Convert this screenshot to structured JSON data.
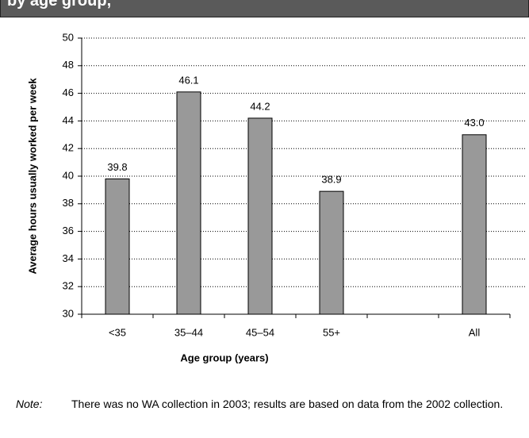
{
  "chart_data": {
    "type": "bar",
    "title": "by age group,",
    "y_label": "Average hours usually worked per week",
    "x_label": "Age group (years)",
    "categories": [
      "<35",
      "35–44",
      "45–54",
      "55+",
      null,
      "All"
    ],
    "values": [
      39.8,
      46.1,
      44.2,
      38.9,
      null,
      43.0
    ],
    "value_labels": [
      "39.8",
      "46.1",
      "44.2",
      "38.9",
      null,
      "43.0"
    ],
    "color": "#999999",
    "ylim": [
      30,
      50
    ],
    "yticks": [
      30,
      32,
      34,
      36,
      38,
      40,
      42,
      44,
      46,
      48,
      50
    ],
    "grid": true
  },
  "note": {
    "label": "Note:",
    "text": "There was no WA collection in 2003; results are based on data from the 2002 collection."
  }
}
